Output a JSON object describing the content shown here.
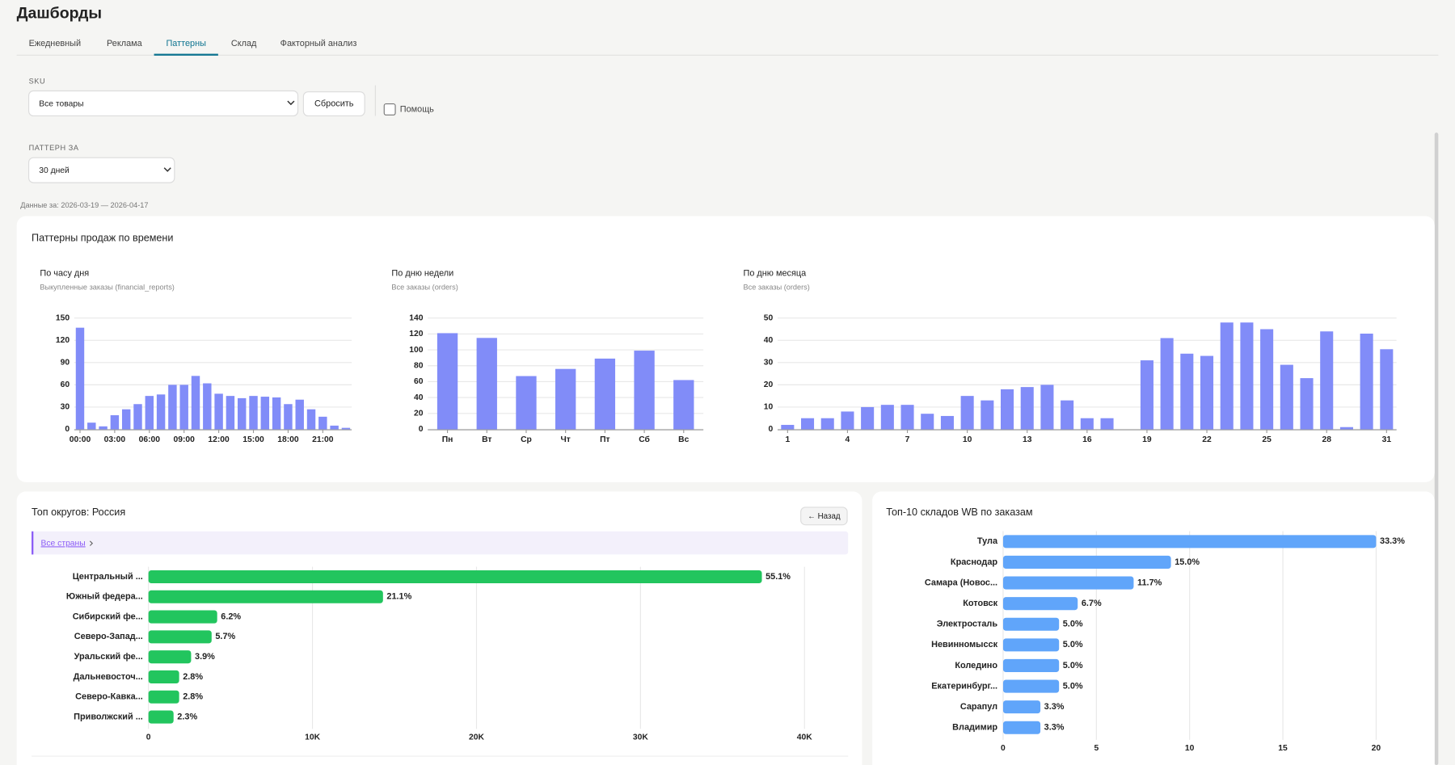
{
  "header": {
    "title": "Дашборды"
  },
  "tabs": [
    "Ежедневный",
    "Реклама",
    "Паттерны",
    "Склад",
    "Факторный анализ"
  ],
  "active_tab": 2,
  "filters": {
    "sku_label": "SKU",
    "sku_value": "Все товары",
    "reset": "Сбросить",
    "help": "Помощь",
    "period_label": "ПАТТЕРН ЗА",
    "period_value": "30 дней",
    "date_range": "Данные за: 2026-03-19 — 2026-04-17"
  },
  "patterns_card": {
    "title": "Паттерны продаж по времени"
  },
  "chart_data": [
    {
      "type": "bar",
      "title": "По часу дня",
      "subtitle": "Выкупленные заказы (financial_reports)",
      "categories": [
        "00:00",
        null,
        null,
        "03:00",
        null,
        null,
        "06:00",
        null,
        null,
        "09:00",
        null,
        null,
        "12:00",
        null,
        null,
        "15:00",
        null,
        null,
        "18:00",
        null,
        null,
        "21:00",
        null,
        null
      ],
      "values": [
        137,
        9,
        4,
        19,
        27,
        34,
        45,
        47,
        60,
        60,
        72,
        62,
        48,
        45,
        42,
        45,
        44,
        43,
        34,
        40,
        27,
        17,
        5,
        2
      ],
      "color": "#818cf8",
      "ylim": [
        0,
        150
      ],
      "yticks": [
        0,
        30,
        60,
        90,
        120,
        150
      ],
      "grid": true
    },
    {
      "type": "bar",
      "title": "По дню недели",
      "subtitle": "Все заказы (orders)",
      "categories": [
        "Пн",
        "Вт",
        "Ср",
        "Чт",
        "Пт",
        "Сб",
        "Вс"
      ],
      "values": [
        121,
        115,
        67,
        76,
        89,
        99,
        62
      ],
      "color": "#818cf8",
      "ylim": [
        0,
        140
      ],
      "yticks": [
        0,
        20,
        40,
        60,
        80,
        100,
        120,
        140
      ],
      "grid": true
    },
    {
      "type": "bar",
      "title": "По дню месяца",
      "subtitle": "Все заказы (orders)",
      "categories": [
        "1",
        null,
        null,
        "4",
        null,
        null,
        "7",
        null,
        null,
        "10",
        null,
        null,
        "13",
        null,
        null,
        "16",
        null,
        null,
        "19",
        null,
        null,
        "22",
        null,
        null,
        "25",
        null,
        null,
        "28",
        null,
        null,
        "31"
      ],
      "values": [
        2,
        5,
        5,
        8,
        10,
        11,
        11,
        7,
        6,
        15,
        13,
        18,
        19,
        20,
        13,
        5,
        5,
        0,
        31,
        41,
        34,
        33,
        48,
        48,
        45,
        29,
        23,
        44,
        1,
        43,
        36
      ],
      "color": "#818cf8",
      "ylim": [
        0,
        50
      ],
      "yticks": [
        0,
        10,
        20,
        30,
        40,
        50
      ],
      "grid": true
    },
    {
      "type": "hbar",
      "title": "Топ округов: Россия",
      "back": "← Назад",
      "breadcrumb": "Все страны",
      "categories": [
        "Центральный ...",
        "Южный федера...",
        "Сибирский фе...",
        "Северо-Запад...",
        "Уральский фе...",
        "Дальневосточ...",
        "Северо-Кавка...",
        "Приволжский ..."
      ],
      "values": [
        37400,
        14300,
        4190,
        3850,
        2600,
        1870,
        1870,
        1530
      ],
      "share_labels": [
        "55.1%",
        "21.1%",
        "6.2%",
        "5.7%",
        "3.9%",
        "2.8%",
        "2.8%",
        "2.3%"
      ],
      "color": "#22c55e",
      "xlim": [
        0,
        40000
      ],
      "xticks": [
        0,
        {
          "value": 10000,
          "label": "10K"
        },
        {
          "value": 20000,
          "label": "20K"
        },
        {
          "value": 30000,
          "label": "30K"
        },
        {
          "value": 40000,
          "label": "40K"
        }
      ],
      "grid": true
    },
    {
      "type": "hbar",
      "title": "Топ-10 складов WB по заказам",
      "categories": [
        "Тула",
        "Краснодар",
        "Самара (Новос...",
        "Котовск",
        "Электросталь",
        "Невинномысск",
        "Коледино",
        "Екатеринбург...",
        "Сарапул",
        "Владимир"
      ],
      "values": [
        20,
        9,
        7,
        4,
        3,
        3,
        3,
        3,
        2,
        2
      ],
      "share_labels": [
        "33.3%",
        "15.0%",
        "11.7%",
        "6.7%",
        "5.0%",
        "5.0%",
        "5.0%",
        "5.0%",
        "3.3%",
        "3.3%"
      ],
      "color": "#60a5fa",
      "xlim": [
        0,
        20
      ],
      "xticks": [
        0,
        5,
        10,
        15,
        20
      ],
      "grid": true
    }
  ]
}
